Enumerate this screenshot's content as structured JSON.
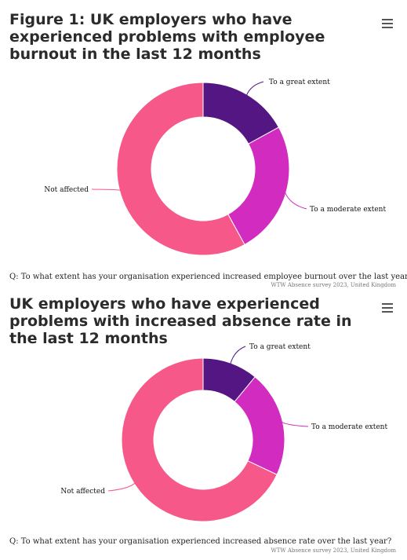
{
  "chart_data": [
    {
      "type": "pie",
      "donut": true,
      "title": "Figure 1: UK employers who have experienced problems with employee burnout in the last 12 months",
      "categories": [
        "To a great extent",
        "To a moderate extent",
        "Not affected"
      ],
      "values": [
        17,
        25,
        58
      ],
      "colors": [
        "#541683",
        "#d22bbf",
        "#f7588a"
      ],
      "question": "Q: To what extent has your organisation experienced increased employee burnout over the last year?",
      "credit": "WTW Absence survey 2023, United Kingdom"
    },
    {
      "type": "pie",
      "donut": true,
      "title": "UK employers who have experienced problems with increased absence rate in the last 12 months",
      "categories": [
        "To a great extent",
        "To a moderate extent",
        "Not affected"
      ],
      "values": [
        11,
        21,
        68
      ],
      "colors": [
        "#541683",
        "#d22bbf",
        "#f7588a"
      ],
      "question": "Q: To what extent has your organisation experienced increased absence rate over the last year?",
      "credit": "WTW Absence survey 2023, United Kingdom"
    }
  ]
}
